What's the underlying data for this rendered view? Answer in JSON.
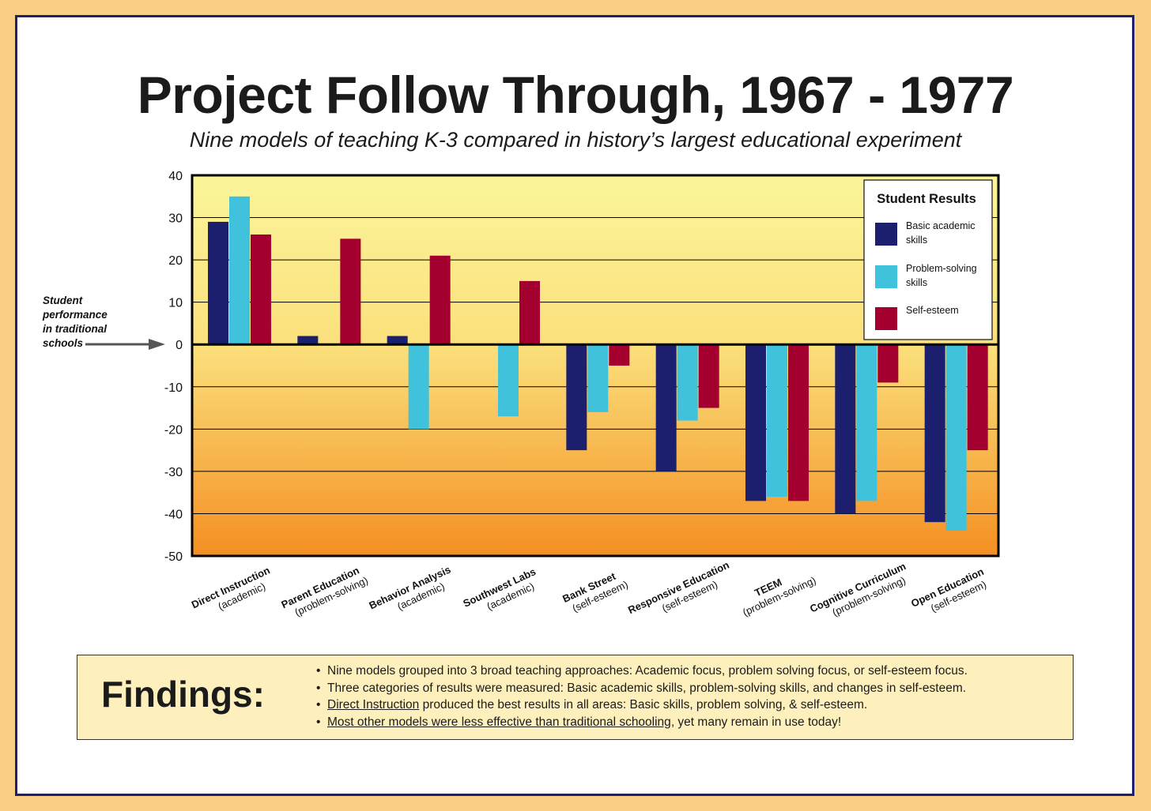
{
  "title": "Project Follow Through, 1967 - 1977",
  "subtitle": "Nine models of teaching K-3 compared in history’s largest educational experiment",
  "chart_data": {
    "type": "bar",
    "ylim": [
      -50,
      40
    ],
    "yticks": [
      40,
      30,
      20,
      10,
      0,
      -10,
      -20,
      -30,
      -40,
      -50
    ],
    "grid": true,
    "baseline_annotation": [
      "Student",
      "performance",
      "in traditional",
      "schools"
    ],
    "legend": {
      "title": "Student Results",
      "position": "top-right",
      "entries": [
        {
          "label_lines": [
            "Basic academic",
            "skills"
          ],
          "color": "#1c1f6e"
        },
        {
          "label_lines": [
            "Problem-solving",
            "skills"
          ],
          "color": "#41c2dc"
        },
        {
          "label_lines": [
            "Self-esteem"
          ],
          "color": "#a3002f"
        }
      ]
    },
    "categories": [
      {
        "name": "Direct Instruction",
        "type": "(academic)"
      },
      {
        "name": "Parent Education",
        "type": "(problem-solving)"
      },
      {
        "name": "Behavior Analysis",
        "type": "(academic)"
      },
      {
        "name": "Southwest Labs",
        "type": "(academic)"
      },
      {
        "name": "Bank Street",
        "type": "(self-esteem)"
      },
      {
        "name": "Responsive Education",
        "type": "(self-esteem)"
      },
      {
        "name": "TEEM",
        "type": "(problem-solving)"
      },
      {
        "name": "Cognitive Curriculum",
        "type": "(problem-solving)"
      },
      {
        "name": "Open Education",
        "type": "(self-esteem)"
      }
    ],
    "series": [
      {
        "name": "Basic academic skills",
        "color": "#1c1f6e",
        "values": [
          29,
          2,
          2,
          0,
          -25,
          -30,
          -37,
          -40,
          -42
        ]
      },
      {
        "name": "Problem-solving skills",
        "color": "#41c2dc",
        "values": [
          35,
          0,
          -20,
          -17,
          -16,
          -18,
          -36,
          -37,
          -44
        ]
      },
      {
        "name": "Self-esteem",
        "color": "#a3002f",
        "values": [
          26,
          25,
          21,
          15,
          -5,
          -15,
          -37,
          -9,
          -25
        ]
      }
    ]
  },
  "findings": {
    "label": "Findings:",
    "items": [
      {
        "u": "",
        "text": "Nine models grouped into 3 broad teaching approaches:  Academic focus, problem solving focus, or self-esteem focus."
      },
      {
        "u": "",
        "text": "Three categories of results were measured:  Basic academic skills, problem-solving skills, and changes in self-esteem."
      },
      {
        "u": "Direct Instruction",
        "text": " produced the best results in all areas:  Basic skills, problem solving, & self-esteem."
      },
      {
        "u": "Most other models were less effective than traditional schooling",
        "text": ", yet many remain in use today!"
      }
    ]
  }
}
